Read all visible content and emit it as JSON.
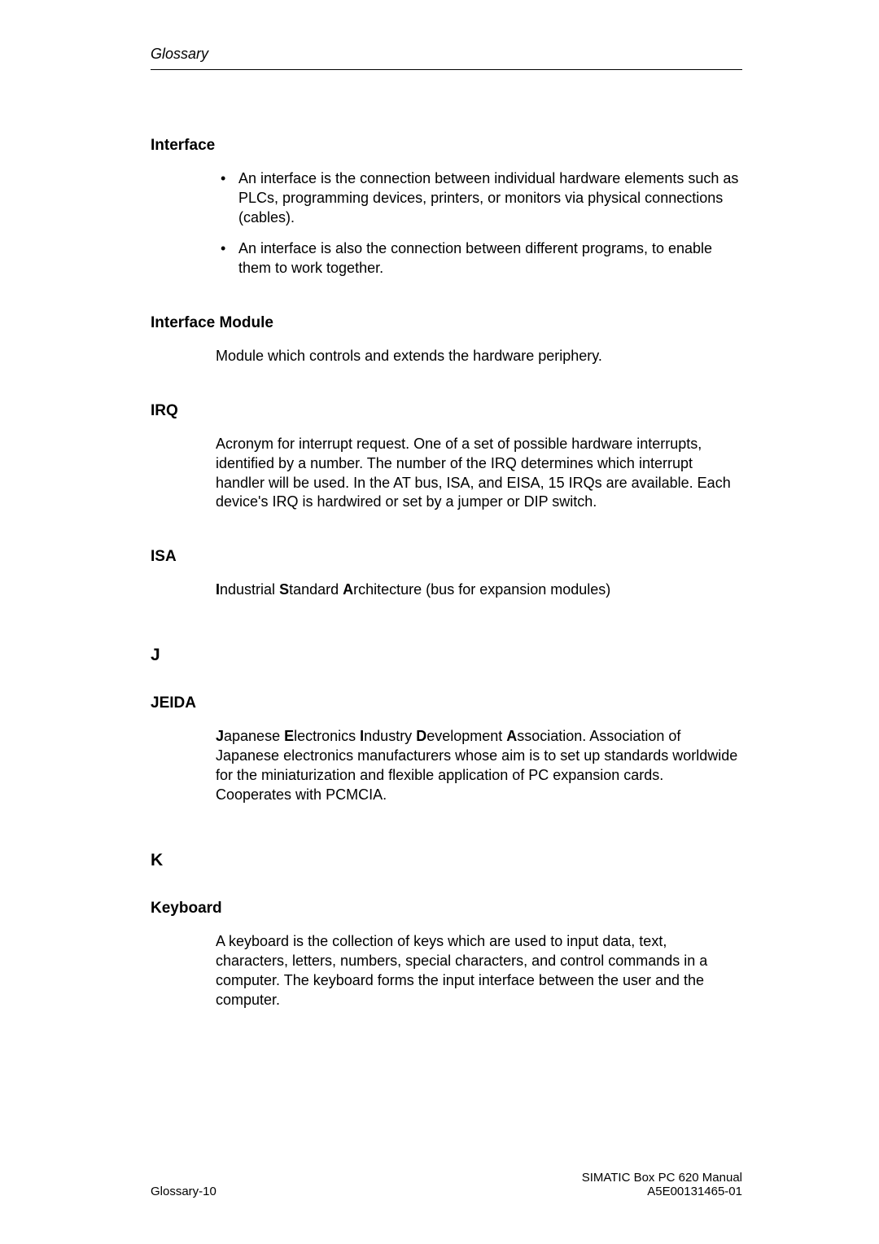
{
  "header": {
    "running_head": "Glossary"
  },
  "entries": {
    "interface": {
      "term": "Interface",
      "b1": "An interface is the connection between individual hardware elements such as PLCs, programming devices, printers, or monitors via physical connections (cables).",
      "b2": "An interface is also the connection between different programs, to enable them to work together."
    },
    "interface_module": {
      "term": "Interface Module",
      "body": "Module which controls and extends the hardware periphery."
    },
    "irq": {
      "term": "IRQ",
      "body": "Acronym for interrupt request. One of a set of possible hardware interrupts, identified by a number. The number of the IRQ determines which interrupt handler will be used. In the AT bus, ISA, and EISA, 15 IRQs are available. Each device's IRQ is hardwired or set by a jumper or DIP switch."
    },
    "isa": {
      "term": "ISA",
      "b_i": "I",
      "t_i": "ndustrial ",
      "b_s": "S",
      "t_s": "tandard ",
      "b_a": "A",
      "t_a": "rchitecture (bus for expansion modules)"
    },
    "letter_j": "J",
    "jeida": {
      "term": "JEIDA",
      "b_j": "J",
      "t_j": "apanese ",
      "b_e": "E",
      "t_e": "lectronics ",
      "b_i": "I",
      "t_i": "ndustry ",
      "b_d": "D",
      "t_d": "evelopment ",
      "b_a": "A",
      "t_a": "ssociation. Association of Japanese electronics manufacturers whose aim is to set up standards worldwide for the miniaturization and flexible application of PC expansion cards. Cooperates with PCMCIA."
    },
    "letter_k": "K",
    "keyboard": {
      "term": "Keyboard",
      "body": "A keyboard is the collection of keys which are used to input data, text, characters, letters, numbers, special characters, and control commands in a computer. The keyboard forms the input interface between the user and the computer."
    }
  },
  "footer": {
    "page_num": "Glossary-10",
    "doc_title": "SIMATIC Box PC 620  Manual",
    "doc_code": "A5E00131465-01"
  }
}
